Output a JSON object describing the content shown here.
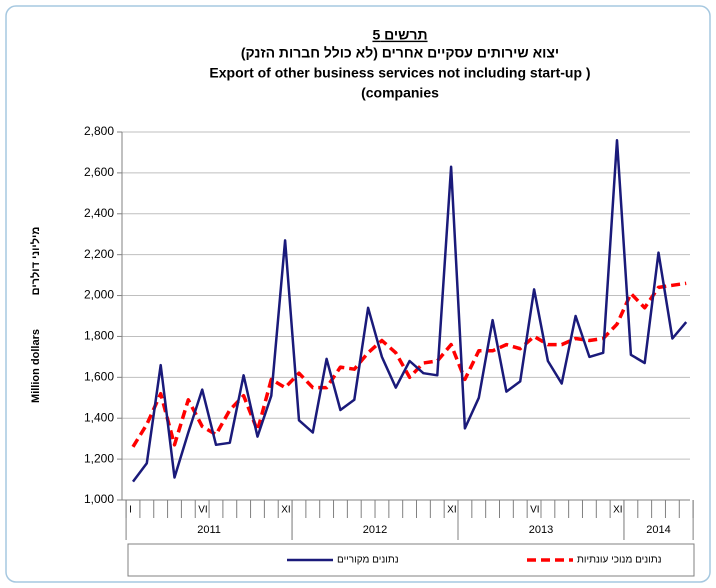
{
  "chart_data": {
    "type": "line",
    "chart_label": "תרשים 5",
    "title_he": "יצוא שירותים עסקיים אחרים (לא כולל חברות הזנק)",
    "title_en": "Export of other business services not including start-up  )",
    "title_en2": "(companies",
    "ylabel_en": "Million dollars",
    "ylabel_he": "מיליוני דולרים",
    "categories": [
      "I",
      null,
      null,
      null,
      null,
      "VI",
      null,
      null,
      null,
      null,
      null,
      "XII",
      null,
      null,
      null,
      null,
      null,
      null,
      null,
      null,
      null,
      null,
      null,
      "XII",
      null,
      null,
      null,
      null,
      null,
      "VI",
      null,
      null,
      null,
      null,
      null,
      "XII",
      null,
      null,
      null,
      null,
      null
    ],
    "years": [
      "2011",
      "2012",
      "2013",
      "2014"
    ],
    "series": [
      {
        "name": "נתונים מקוריים",
        "color": "#1a1a7a",
        "dash": false,
        "values": [
          1090,
          1180,
          1660,
          1110,
          1330,
          1540,
          1270,
          1280,
          1610,
          1310,
          1510,
          2270,
          1390,
          1330,
          1690,
          1440,
          1490,
          1940,
          1700,
          1550,
          1680,
          1620,
          1610,
          2630,
          1350,
          1500,
          1880,
          1530,
          1580,
          2030,
          1680,
          1570,
          1900,
          1700,
          1720,
          2760,
          1710,
          1670,
          2210,
          1790,
          1870
        ]
      },
      {
        "name": "נתונים מנוכי עונתיות",
        "color": "#ff0000",
        "dash": true,
        "values": [
          1260,
          1370,
          1520,
          1270,
          1490,
          1360,
          1320,
          1440,
          1510,
          1340,
          1590,
          1550,
          1620,
          1550,
          1550,
          1650,
          1640,
          1720,
          1780,
          1720,
          1600,
          1670,
          1680,
          1760,
          1590,
          1730,
          1730,
          1760,
          1740,
          1800,
          1760,
          1760,
          1790,
          1780,
          1790,
          1860,
          2010,
          1940,
          2040,
          2050,
          2060
        ]
      }
    ],
    "ylim": [
      1000,
      2800
    ],
    "yticks": [
      {
        "value": 1000,
        "label": "1,000"
      },
      {
        "value": 1200,
        "label": "1,200"
      },
      {
        "value": 1400,
        "label": "1,400"
      },
      {
        "value": 1600,
        "label": "1,600"
      },
      {
        "value": 1800,
        "label": "1,800"
      },
      {
        "value": 2000,
        "label": "2,000"
      },
      {
        "value": 2200,
        "label": "2,200"
      },
      {
        "value": 2400,
        "label": "2,400"
      },
      {
        "value": 2600,
        "label": "2,600"
      },
      {
        "value": 2800,
        "label": "2,800"
      }
    ],
    "grid": true
  }
}
